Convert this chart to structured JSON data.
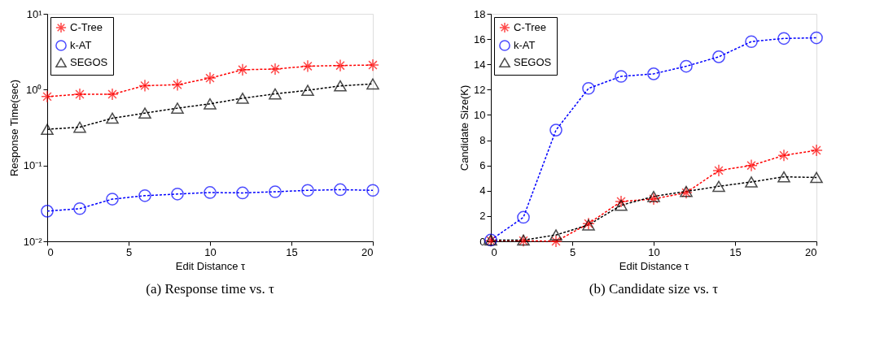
{
  "chart_data": [
    {
      "type": "line",
      "xlabel": "Edit Distance τ",
      "ylabel": "Response Time(sec)",
      "annotations": [
        "(a) Response time vs. τ"
      ],
      "log": "y",
      "legend": "top left",
      "grid": false,
      "line_style": "dashed",
      "x": [
        0,
        2,
        4,
        6,
        8,
        10,
        12,
        14,
        16,
        18,
        20
      ],
      "xlim": [
        0,
        20
      ],
      "xticks": [
        0,
        5,
        10,
        15,
        20
      ],
      "ylim": [
        0.01,
        10
      ],
      "yticks": [
        {
          "value": 0.01,
          "label": "10⁻²"
        },
        {
          "value": 0.1,
          "label": "10⁻¹"
        },
        {
          "value": 1,
          "label": "10⁰"
        },
        {
          "value": 10,
          "label": "10¹"
        }
      ],
      "series": [
        {
          "name": "C-Tree",
          "color": "#ff0000",
          "marker": "cross",
          "values": [
            0.81,
            0.87,
            0.87,
            1.13,
            1.16,
            1.42,
            1.83,
            1.87,
            2.04,
            2.08,
            2.11
          ]
        },
        {
          "name": "k-AT",
          "color": "#0000ff",
          "marker": "circle",
          "values": [
            0.025,
            0.027,
            0.036,
            0.04,
            0.042,
            0.044,
            0.0435,
            0.045,
            0.047,
            0.048,
            0.047
          ]
        },
        {
          "name": "SEGOS",
          "color": "#000000",
          "marker": "triangle",
          "values": [
            0.3,
            0.32,
            0.42,
            0.49,
            0.57,
            0.65,
            0.77,
            0.88,
            0.98,
            1.12,
            1.19
          ]
        }
      ]
    },
    {
      "type": "line",
      "xlabel": "Edit Distance τ",
      "ylabel": "Candidate Size(K)",
      "annotations": [
        "(b) Candidate size vs. τ"
      ],
      "legend": "top left",
      "grid": false,
      "line_style": "dashed",
      "x": [
        0,
        2,
        4,
        6,
        8,
        10,
        12,
        14,
        16,
        18,
        20
      ],
      "xlim": [
        0,
        20
      ],
      "xticks": [
        0,
        5,
        10,
        15,
        20
      ],
      "ylim": [
        0,
        18
      ],
      "yticks": [
        0,
        2,
        4,
        6,
        8,
        10,
        12,
        14,
        16,
        18
      ],
      "series": [
        {
          "name": "C-Tree",
          "color": "#ff0000",
          "marker": "cross",
          "values": [
            0.05,
            0.05,
            0.0,
            1.4,
            3.15,
            3.35,
            3.85,
            5.6,
            6.0,
            6.8,
            7.2
          ]
        },
        {
          "name": "k-AT",
          "color": "#0000ff",
          "marker": "circle",
          "values": [
            0.1,
            1.9,
            8.8,
            12.1,
            13.05,
            13.25,
            13.85,
            14.6,
            15.8,
            16.05,
            16.1
          ]
        },
        {
          "name": "SEGOS",
          "color": "#000000",
          "marker": "triangle",
          "values": [
            0.1,
            0.1,
            0.5,
            1.3,
            2.85,
            3.55,
            3.95,
            4.35,
            4.7,
            5.1,
            5.05
          ]
        }
      ]
    }
  ]
}
